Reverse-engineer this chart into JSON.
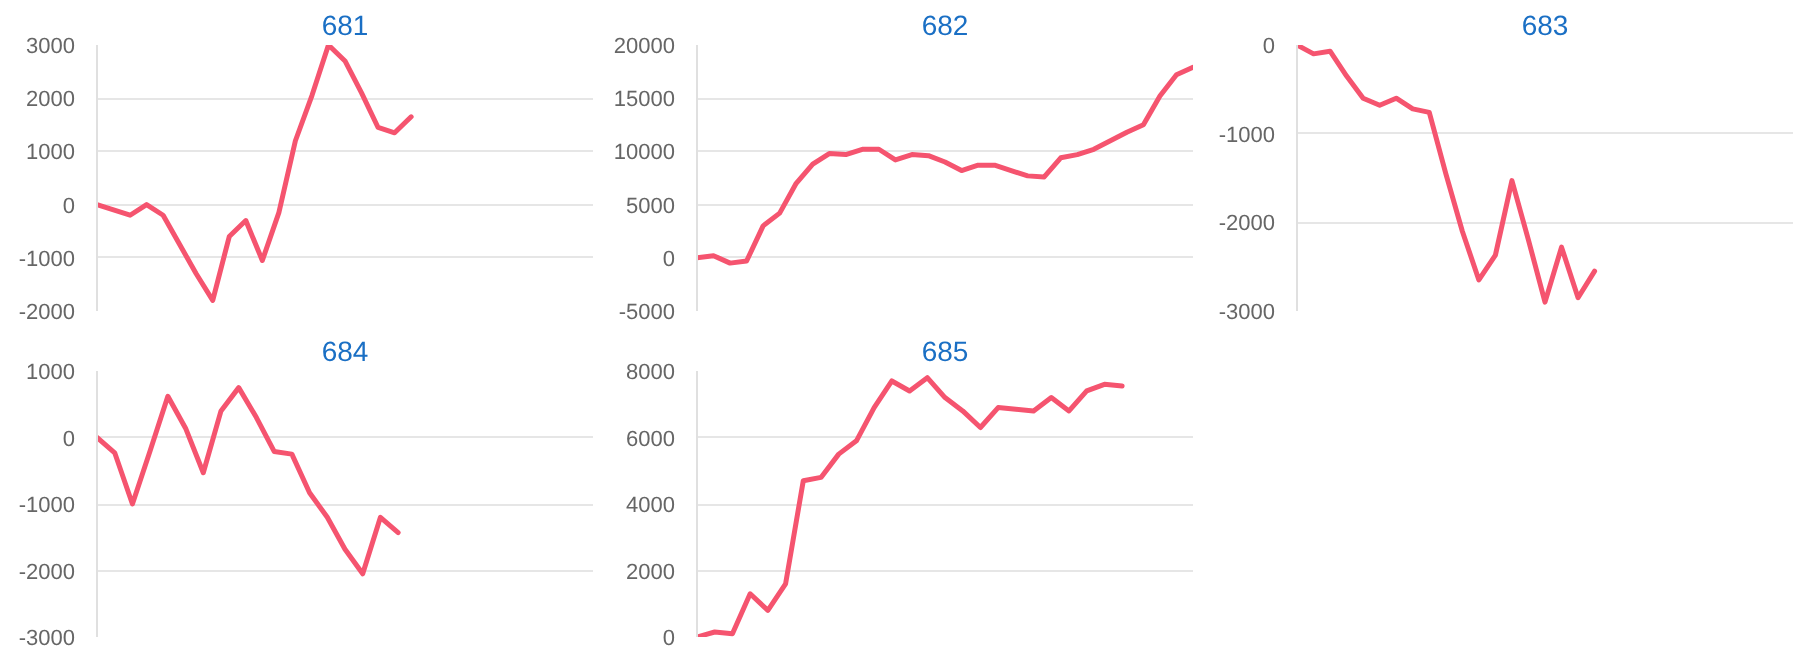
{
  "chart_data": [
    {
      "type": "line",
      "title": "681",
      "categories": [
        null,
        null,
        null,
        null,
        null,
        null,
        null,
        null,
        null,
        null,
        null,
        null,
        null,
        null,
        null,
        null,
        null,
        null,
        null,
        null,
        null,
        null,
        null,
        null,
        null,
        null,
        null,
        null,
        null,
        null,
        null
      ],
      "series": [
        {
          "color": "#f5546f",
          "values": [
            0,
            -100,
            -200,
            0,
            -200,
            -750,
            -1300,
            -1800,
            -600,
            -300,
            -1050,
            -150,
            1200,
            2050,
            3000,
            2700,
            2100,
            1450,
            1350,
            1650,
            null,
            null,
            null,
            null,
            null,
            null,
            null,
            null,
            null,
            null,
            null
          ]
        }
      ],
      "ylim": [
        -2000,
        3000
      ],
      "yticks": [
        -2000,
        -1000,
        0,
        1000,
        2000,
        3000
      ],
      "grid": "y",
      "tick_labels": "y",
      "marker": "none",
      "line_style": "solid"
    },
    {
      "type": "line",
      "title": "682",
      "categories": [
        null,
        null,
        null,
        null,
        null,
        null,
        null,
        null,
        null,
        null,
        null,
        null,
        null,
        null,
        null,
        null,
        null,
        null,
        null,
        null,
        null,
        null,
        null,
        null,
        null,
        null,
        null,
        null,
        null,
        null,
        null
      ],
      "series": [
        {
          "color": "#f5546f",
          "values": [
            0,
            200,
            -500,
            -300,
            3000,
            4200,
            7000,
            8800,
            9800,
            9700,
            10200,
            10200,
            9200,
            9700,
            9600,
            9000,
            8200,
            8700,
            8700,
            8200,
            7700,
            7600,
            9400,
            9700,
            10200,
            11000,
            11800,
            12500,
            15200,
            17200,
            17900
          ]
        }
      ],
      "ylim": [
        -5000,
        20000
      ],
      "yticks": [
        -5000,
        0,
        5000,
        10000,
        15000,
        20000
      ],
      "grid": "y",
      "tick_labels": "y",
      "marker": "none",
      "line_style": "solid"
    },
    {
      "type": "line",
      "title": "683",
      "categories": [
        null,
        null,
        null,
        null,
        null,
        null,
        null,
        null,
        null,
        null,
        null,
        null,
        null,
        null,
        null,
        null,
        null,
        null,
        null,
        null,
        null,
        null,
        null,
        null,
        null,
        null,
        null,
        null,
        null,
        null,
        null
      ],
      "series": [
        {
          "color": "#f5546f",
          "values": [
            0,
            -100,
            -70,
            -350,
            -600,
            -680,
            -600,
            -720,
            -760,
            -1450,
            -2100,
            -2650,
            -2370,
            -1530,
            -2200,
            -2900,
            -2280,
            -2850,
            -2550,
            null,
            null,
            null,
            null,
            null,
            null,
            null,
            null,
            null,
            null,
            null,
            null
          ]
        }
      ],
      "ylim": [
        -3000,
        0
      ],
      "yticks": [
        -3000,
        -2000,
        -1000,
        0
      ],
      "grid": "y",
      "tick_labels": "y",
      "marker": "none",
      "line_style": "solid"
    },
    {
      "type": "line",
      "title": "684",
      "categories": [
        null,
        null,
        null,
        null,
        null,
        null,
        null,
        null,
        null,
        null,
        null,
        null,
        null,
        null,
        null,
        null,
        null,
        null,
        null,
        null,
        null,
        null,
        null,
        null,
        null,
        null,
        null,
        null,
        null
      ],
      "series": [
        {
          "color": "#f5546f",
          "values": [
            0,
            -230,
            -1000,
            -200,
            620,
            140,
            -530,
            400,
            750,
            300,
            -210,
            -250,
            -830,
            -1200,
            -1680,
            -2050,
            -1200,
            -1430,
            null,
            null,
            null,
            null,
            null,
            null,
            null,
            null,
            null,
            null,
            null
          ]
        }
      ],
      "ylim": [
        -3000,
        1000
      ],
      "yticks": [
        -3000,
        -2000,
        -1000,
        0,
        1000
      ],
      "grid": "y",
      "tick_labels": "y",
      "marker": "none",
      "line_style": "solid"
    },
    {
      "type": "line",
      "title": "685",
      "categories": [
        null,
        null,
        null,
        null,
        null,
        null,
        null,
        null,
        null,
        null,
        null,
        null,
        null,
        null,
        null,
        null,
        null,
        null,
        null,
        null,
        null,
        null,
        null,
        null,
        null,
        null,
        null,
        null,
        null
      ],
      "series": [
        {
          "color": "#f5546f",
          "values": [
            0,
            150,
            100,
            1300,
            800,
            1600,
            4700,
            4800,
            5500,
            5900,
            6900,
            7700,
            7400,
            7800,
            7200,
            6800,
            6300,
            6900,
            6850,
            6800,
            7200,
            6800,
            7400,
            7600,
            7550,
            null,
            null,
            null,
            null
          ]
        }
      ],
      "ylim": [
        0,
        8000
      ],
      "yticks": [
        0,
        2000,
        4000,
        6000,
        8000
      ],
      "grid": "y",
      "tick_labels": "y",
      "marker": "none",
      "line_style": "solid"
    }
  ]
}
